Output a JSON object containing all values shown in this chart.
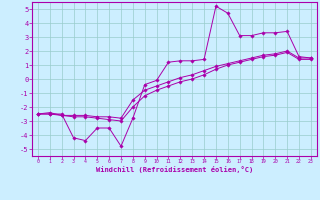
{
  "xlabel": "Windchill (Refroidissement éolien,°C)",
  "bg_color": "#cceeff",
  "line_color": "#aa00aa",
  "xlim": [
    -0.5,
    23.5
  ],
  "ylim": [
    -5.5,
    5.5
  ],
  "xticks": [
    0,
    1,
    2,
    3,
    4,
    5,
    6,
    7,
    8,
    9,
    10,
    11,
    12,
    13,
    14,
    15,
    16,
    17,
    18,
    19,
    20,
    21,
    22,
    23
  ],
  "yticks": [
    -5,
    -4,
    -3,
    -2,
    -1,
    0,
    1,
    2,
    3,
    4,
    5
  ],
  "grid_color": "#99cccc",
  "series1_x": [
    0,
    1,
    2,
    3,
    4,
    5,
    6,
    7,
    8,
    9,
    10,
    11,
    12,
    13,
    14,
    15,
    16,
    17,
    18,
    19,
    20,
    21,
    22,
    23
  ],
  "series1_y": [
    -2.5,
    -2.5,
    -2.5,
    -4.2,
    -4.4,
    -3.5,
    -3.5,
    -4.8,
    -2.8,
    -0.4,
    -0.1,
    1.2,
    1.3,
    1.3,
    1.4,
    5.2,
    4.7,
    3.1,
    3.1,
    3.3,
    3.3,
    3.4,
    1.6,
    1.5
  ],
  "series2_x": [
    0,
    1,
    2,
    3,
    4,
    5,
    6,
    7,
    8,
    9,
    10,
    11,
    12,
    13,
    14,
    15,
    16,
    17,
    18,
    19,
    20,
    21,
    22,
    23
  ],
  "series2_y": [
    -2.5,
    -2.5,
    -2.6,
    -2.6,
    -2.6,
    -2.7,
    -2.7,
    -2.8,
    -1.5,
    -0.8,
    -0.5,
    -0.2,
    0.1,
    0.3,
    0.6,
    0.9,
    1.1,
    1.3,
    1.5,
    1.7,
    1.8,
    2.0,
    1.5,
    1.5
  ],
  "series3_x": [
    0,
    1,
    2,
    3,
    4,
    5,
    6,
    7,
    8,
    9,
    10,
    11,
    12,
    13,
    14,
    15,
    16,
    17,
    18,
    19,
    20,
    21,
    22,
    23
  ],
  "series3_y": [
    -2.5,
    -2.4,
    -2.6,
    -2.7,
    -2.7,
    -2.8,
    -2.9,
    -3.0,
    -2.0,
    -1.2,
    -0.8,
    -0.5,
    -0.2,
    0.0,
    0.3,
    0.7,
    1.0,
    1.2,
    1.4,
    1.6,
    1.7,
    1.9,
    1.4,
    1.4
  ]
}
